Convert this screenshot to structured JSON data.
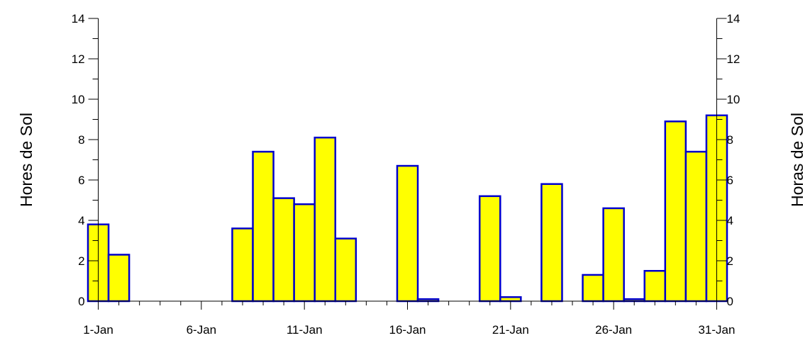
{
  "chart_data": {
    "type": "bar",
    "ylabel_left": "Hores de Sol",
    "ylabel_right": "Horas de Sol",
    "ylim": [
      0,
      14
    ],
    "yticks": [
      0,
      2,
      4,
      6,
      8,
      10,
      12,
      14
    ],
    "xtick_labels": [
      "1-Jan",
      "6-Jan",
      "11-Jan",
      "16-Jan",
      "21-Jan",
      "26-Jan",
      "31-Jan"
    ],
    "xtick_days": [
      1,
      6,
      11,
      16,
      21,
      26,
      31
    ],
    "grid": false,
    "bar_fill": "#ffff00",
    "bar_stroke": "#0000cc",
    "days": [
      1,
      2,
      3,
      4,
      5,
      6,
      7,
      8,
      9,
      10,
      11,
      12,
      13,
      14,
      15,
      16,
      17,
      18,
      19,
      20,
      21,
      22,
      23,
      24,
      25,
      26,
      27,
      28,
      29,
      30,
      31
    ],
    "values": [
      3.8,
      2.3,
      0,
      0,
      0,
      0,
      0,
      3.6,
      7.4,
      5.1,
      4.8,
      8.1,
      3.1,
      0,
      0,
      6.7,
      0.1,
      0,
      0,
      5.2,
      0.2,
      0,
      5.8,
      0,
      1.3,
      4.6,
      0.1,
      1.5,
      8.9,
      7.4,
      9.2
    ]
  }
}
